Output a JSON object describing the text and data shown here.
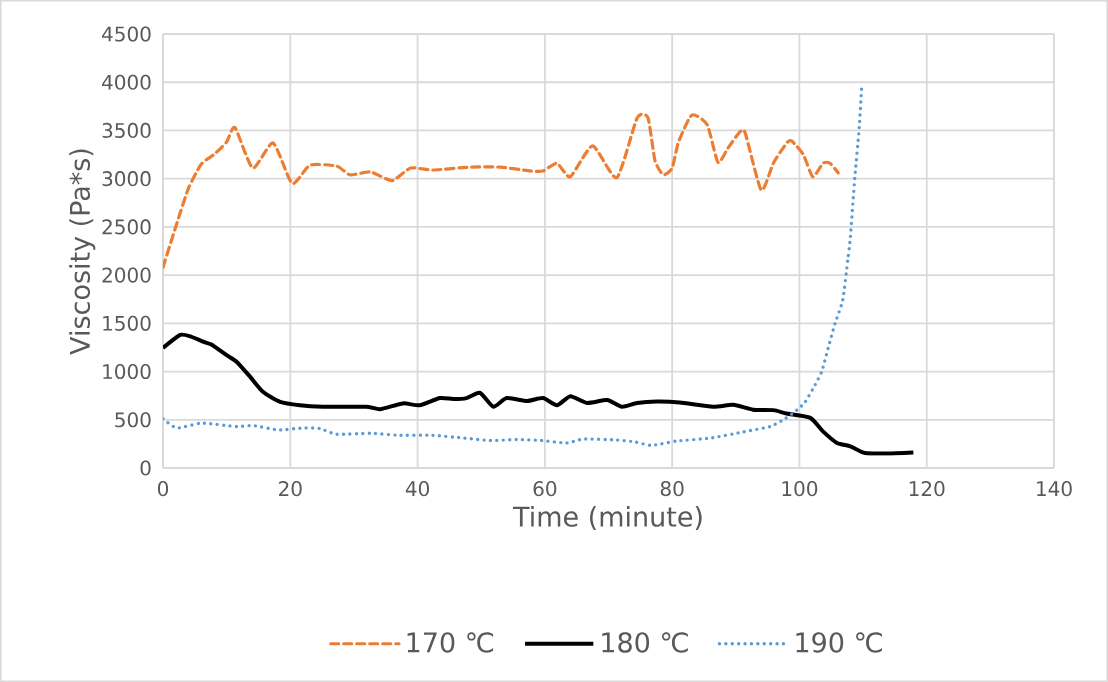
{
  "chart_data": {
    "type": "line",
    "xlabel": "Time (minute)",
    "ylabel": "Viscosity (Pa*s)",
    "xlim": [
      0,
      140
    ],
    "xticks": [
      0,
      20,
      40,
      60,
      80,
      100,
      120,
      140
    ],
    "ylim": [
      0,
      4500
    ],
    "yticks": [
      0,
      500,
      1000,
      1500,
      2000,
      2500,
      3000,
      3500,
      4000,
      4500
    ],
    "grid": true,
    "legend": "bottom",
    "series": [
      {
        "name": "170 ℃",
        "color": "#ed7d31",
        "line_style": "dashed",
        "x": [
          0,
          2,
          4,
          6,
          8,
          10,
          11.3,
          14.1,
          17.3,
          20.3,
          23.1,
          27.3,
          29.4,
          32.6,
          36,
          38.9,
          42.4,
          48.2,
          53,
          57.7,
          59.7,
          61.9,
          64,
          67.5,
          71.3,
          74.5,
          76.2,
          77.3,
          78.6,
          80,
          81,
          83.1,
          85.5,
          87.2,
          88.8,
          90.7,
          91.5,
          94,
          95.9,
          98,
          98.8,
          100.6,
          102.1,
          103.7,
          104.8,
          106.1
        ],
        "values": [
          2080,
          2500,
          2900,
          3150,
          3250,
          3380,
          3530,
          3110,
          3370,
          2950,
          3140,
          3130,
          3040,
          3070,
          2980,
          3110,
          3090,
          3120,
          3120,
          3080,
          3080,
          3160,
          3020,
          3340,
          3010,
          3630,
          3630,
          3190,
          3040,
          3110,
          3380,
          3660,
          3560,
          3170,
          3320,
          3490,
          3470,
          2880,
          3160,
          3370,
          3390,
          3250,
          3020,
          3160,
          3160,
          3060
        ]
      },
      {
        "name": "180 ℃",
        "color": "#000000",
        "line_style": "solid",
        "x": [
          0,
          2.7,
          4.3,
          6.3,
          7.6,
          10,
          11.6,
          13.7,
          15.7,
          18.4,
          21.5,
          25.1,
          32,
          34.1,
          37.7,
          40.3,
          43.5,
          45.6,
          47.7,
          49.8,
          51.9,
          54,
          57.2,
          59.7,
          61.9,
          64,
          66.6,
          69.8,
          72.1,
          74.5,
          77.6,
          81.2,
          86.4,
          89.6,
          92.7,
          95.9,
          98,
          101.7,
          103.7,
          105.9,
          108,
          110.3,
          113.8,
          117.9
        ],
        "values": [
          1245,
          1380,
          1365,
          1310,
          1280,
          1170,
          1100,
          945,
          790,
          685,
          650,
          635,
          635,
          610,
          670,
          650,
          725,
          715,
          725,
          780,
          635,
          725,
          695,
          725,
          650,
          745,
          675,
          705,
          635,
          675,
          690,
          680,
          635,
          655,
          605,
          600,
          565,
          520,
          380,
          260,
          225,
          155,
          150,
          160
        ]
      },
      {
        "name": "190 ℃",
        "color": "#5b9bd5",
        "line_style": "dotted",
        "x": [
          0,
          2.2,
          6.1,
          11.6,
          14.2,
          18.1,
          22,
          24.6,
          27.3,
          32.6,
          36.8,
          42.1,
          47.4,
          51.4,
          55.6,
          59.5,
          63.4,
          66.1,
          71.3,
          74.2,
          76.8,
          80.7,
          86,
          91.2,
          95.4,
          97.7,
          99.6,
          100.9,
          102.2,
          103.5,
          104.5,
          105.6,
          106.8,
          107.6,
          108,
          108.7,
          109.4,
          109.8
        ],
        "values": [
          510,
          415,
          465,
          430,
          440,
          395,
          415,
          410,
          350,
          360,
          340,
          340,
          310,
          285,
          295,
          285,
          260,
          300,
          290,
          270,
          235,
          280,
          310,
          375,
          430,
          510,
          600,
          685,
          830,
          1000,
          1240,
          1500,
          1740,
          2160,
          2390,
          3010,
          3530,
          3980
        ]
      }
    ]
  }
}
